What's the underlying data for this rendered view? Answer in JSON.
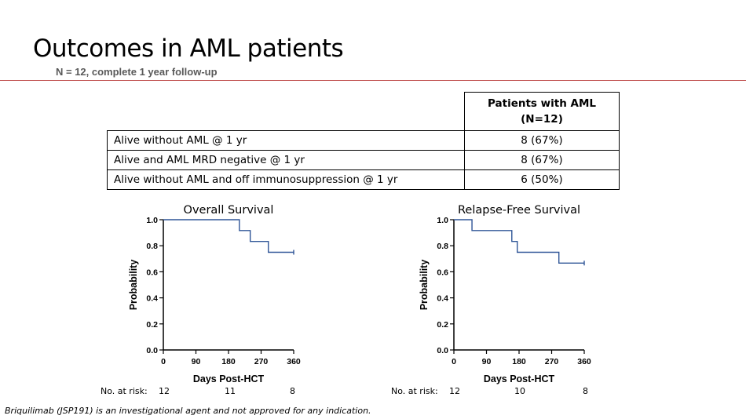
{
  "slide": {
    "title": "Outcomes in AML patients",
    "subtitle": "N = 12, complete 1 year follow-up",
    "footnote": "Briquilimab (JSP191) is an investigational agent and not approved for any indication."
  },
  "table": {
    "header": [
      "Patients with AML",
      "(N=12)"
    ],
    "rows": [
      {
        "label": "Alive without AML @ 1 yr",
        "value": "8 (67%)"
      },
      {
        "label": "Alive and AML MRD negative @ 1 yr",
        "value": "8 (67%)"
      },
      {
        "label": "Alive without AML and off immunosuppression @ 1 yr",
        "value": "6 (50%)"
      }
    ]
  },
  "colors": {
    "curve": "#2f5597",
    "rule": "#c0504d"
  },
  "chart_data": [
    {
      "type": "line",
      "title": "Overall Survival",
      "xlabel": "Days Post-HCT",
      "ylabel": "Probability",
      "xlim": [
        0,
        360
      ],
      "ylim": [
        0,
        1
      ],
      "xticks": [
        "0",
        "90",
        "180",
        "270",
        "360"
      ],
      "yticks": [
        "0.0",
        "0.2",
        "0.4",
        "0.6",
        "0.8",
        "1.0"
      ],
      "series": [
        {
          "name": "Overall Survival",
          "step": true,
          "x": [
            0,
            210,
            240,
            290,
            360
          ],
          "y": [
            1.0,
            0.917,
            0.833,
            0.75,
            0.75
          ]
        }
      ],
      "risk_label": "No. at risk:",
      "risk_values": [
        "12",
        "11",
        "8"
      ]
    },
    {
      "type": "line",
      "title": "Relapse-Free Survival",
      "xlabel": "Days Post-HCT",
      "ylabel": "Probability",
      "xlim": [
        0,
        360
      ],
      "ylim": [
        0,
        1
      ],
      "xticks": [
        "0",
        "90",
        "180",
        "270",
        "360"
      ],
      "yticks": [
        "0.0",
        "0.2",
        "0.4",
        "0.6",
        "0.8",
        "1.0"
      ],
      "series": [
        {
          "name": "Relapse-Free Survival",
          "step": true,
          "x": [
            0,
            50,
            160,
            175,
            290,
            360
          ],
          "y": [
            1.0,
            0.917,
            0.833,
            0.75,
            0.667,
            0.667
          ]
        }
      ],
      "risk_label": "No. at risk:",
      "risk_values": [
        "12",
        "10",
        "8"
      ]
    }
  ]
}
